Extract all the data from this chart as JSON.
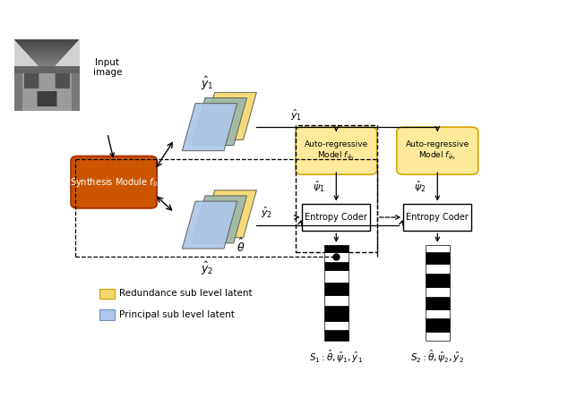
{
  "fig_width": 6.34,
  "fig_height": 4.44,
  "dpi": 100,
  "bg_color": "#ffffff",
  "yellow_color": "#f5d76e",
  "blue_color": "#aec6e8",
  "gray_color": "#9eb8a8",
  "redundance_legend_color": "#f5d76e",
  "principal_legend_color": "#aec6e8",
  "redundance_text": "Redundance sub level latent",
  "principal_text": "Principal sub level latent",
  "s1_label": "$S_1 : \\hat{\\theta}, \\hat{\\psi}_1, \\hat{y}_1$",
  "s2_label": "$S_2 : \\hat{\\theta}, \\hat{\\psi}_2, \\hat{y}_2$",
  "theta_label": "$\\hat{\\theta}$"
}
